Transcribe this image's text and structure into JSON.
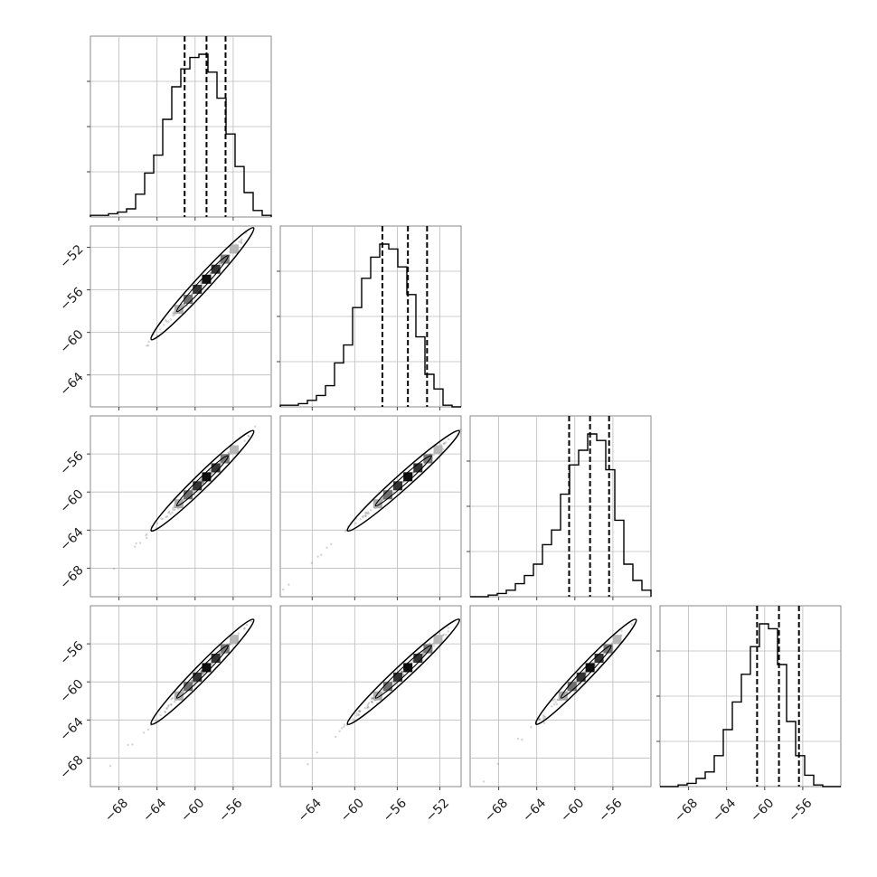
{
  "chart_data": {
    "type": "corner",
    "n_params": 4,
    "x_ticks": [
      [
        "−68",
        "−64",
        "−60",
        "−56"
      ],
      [
        "−64",
        "−60",
        "−56",
        "−52"
      ],
      [
        "−68",
        "−64",
        "−60",
        "−56"
      ],
      [
        "−68",
        "−64",
        "−60",
        "−56"
      ]
    ],
    "y_ticks": {
      "1": [
        "−52",
        "−56",
        "−60",
        "−64"
      ],
      "2": [
        "−56",
        "−60",
        "−64",
        "−68"
      ],
      "3": [
        "−56",
        "−60",
        "−64",
        "−68"
      ]
    },
    "ranges": [
      [
        -71,
        -52
      ],
      [
        -67,
        -50
      ],
      [
        -71,
        -52
      ],
      [
        -71,
        -52
      ]
    ],
    "quantiles": [
      [
        -61.1,
        -58.8,
        -56.8
      ],
      [
        -57.4,
        -55.0,
        -53.2
      ],
      [
        -60.6,
        -58.4,
        -56.4
      ],
      [
        -60.8,
        -58.5,
        -56.4
      ]
    ],
    "histograms": [
      [
        0.01,
        0.01,
        0.02,
        0.03,
        0.05,
        0.14,
        0.27,
        0.38,
        0.6,
        0.8,
        0.91,
        0.98,
        1.0,
        0.89,
        0.73,
        0.51,
        0.31,
        0.15,
        0.04,
        0.01
      ],
      [
        0.01,
        0.01,
        0.02,
        0.04,
        0.07,
        0.13,
        0.27,
        0.38,
        0.61,
        0.79,
        0.92,
        1.0,
        0.97,
        0.86,
        0.69,
        0.43,
        0.2,
        0.11,
        0.01,
        0.0
      ],
      [
        0.0,
        0.0,
        0.01,
        0.02,
        0.04,
        0.08,
        0.13,
        0.2,
        0.32,
        0.41,
        0.63,
        0.81,
        0.9,
        1.0,
        0.96,
        0.78,
        0.47,
        0.2,
        0.1,
        0.04
      ],
      [
        0.0,
        0.0,
        0.01,
        0.02,
        0.05,
        0.09,
        0.19,
        0.35,
        0.52,
        0.69,
        0.86,
        1.0,
        0.97,
        0.75,
        0.4,
        0.19,
        0.07,
        0.01,
        0.0,
        0.0
      ]
    ]
  }
}
